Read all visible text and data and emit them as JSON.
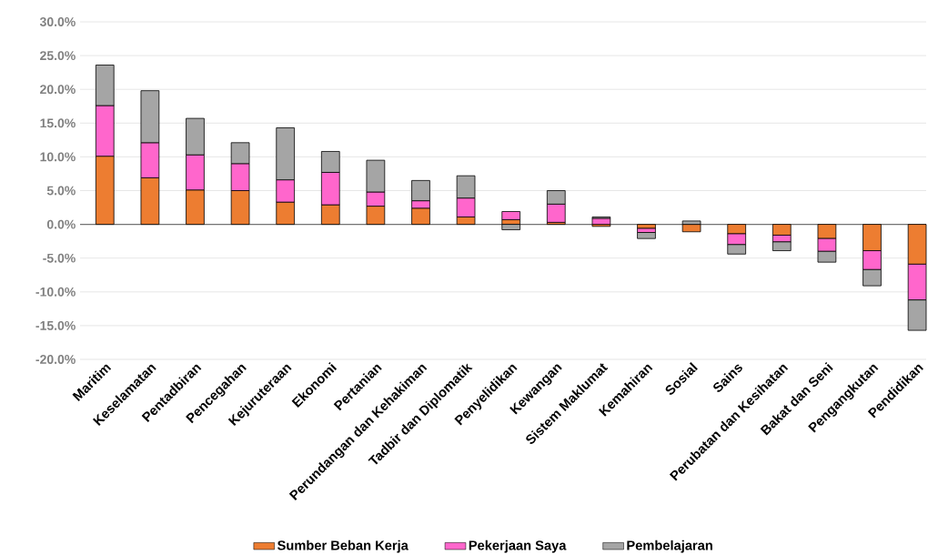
{
  "chart_data": {
    "type": "bar",
    "stacked": true,
    "categories": [
      "Maritim",
      "Keselamatan",
      "Pentadbiran",
      "Pencegahan",
      "Kejuruteraan",
      "Ekonomi",
      "Pertanian",
      "Perundangan dan Kehakiman",
      "Tadbir dan Diplomatik",
      "Penyelidikan",
      "Kewangan",
      "Sistem Maklumat",
      "Kemahiran",
      "Sosial",
      "Sains",
      "Perubatan dan Kesihatan",
      "Bakat dan Seni",
      "Pengangkutan",
      "Pendidikan"
    ],
    "series": [
      {
        "name": "Sumber Beban Kerja",
        "color": "#ed7d31",
        "values": [
          10.1,
          6.9,
          5.1,
          5.0,
          3.3,
          2.9,
          2.7,
          2.4,
          1.1,
          0.7,
          0.3,
          -0.3,
          -0.6,
          -1.1,
          -1.4,
          -1.6,
          -2.1,
          -3.9,
          -5.9
        ]
      },
      {
        "name": "Pekerjaan Saya",
        "color": "#ff66cc",
        "values": [
          7.5,
          5.2,
          5.2,
          4.0,
          3.3,
          4.8,
          2.1,
          1.1,
          2.8,
          1.2,
          2.7,
          0.9,
          -0.6,
          null,
          -1.6,
          -1.0,
          -1.9,
          -2.8,
          -5.3
        ]
      },
      {
        "name": "Pembelajaran",
        "color": "#a5a5a5",
        "values": [
          6.0,
          7.7,
          5.4,
          3.1,
          7.7,
          3.1,
          4.7,
          3.0,
          3.3,
          -0.8,
          2.0,
          0.2,
          -0.9,
          0.5,
          -1.4,
          -1.3,
          -1.6,
          -2.4,
          -4.5
        ]
      }
    ],
    "ylim": [
      -20,
      30
    ],
    "yticks": [
      {
        "value": -20,
        "label": "-20.0%"
      },
      {
        "value": -15,
        "label": "-15.0%"
      },
      {
        "value": -10,
        "label": "-10.0%"
      },
      {
        "value": -5,
        "label": "-5.0%"
      },
      {
        "value": 0,
        "label": "0.0%"
      },
      {
        "value": 5,
        "label": "5.0%"
      },
      {
        "value": 10,
        "label": "10.0%"
      },
      {
        "value": 15,
        "label": "15.0%"
      },
      {
        "value": 20,
        "label": "20.0%"
      },
      {
        "value": 25,
        "label": "25.0%"
      },
      {
        "value": 30,
        "label": "30.0%"
      }
    ],
    "grid": "y",
    "legend": "bottom"
  }
}
